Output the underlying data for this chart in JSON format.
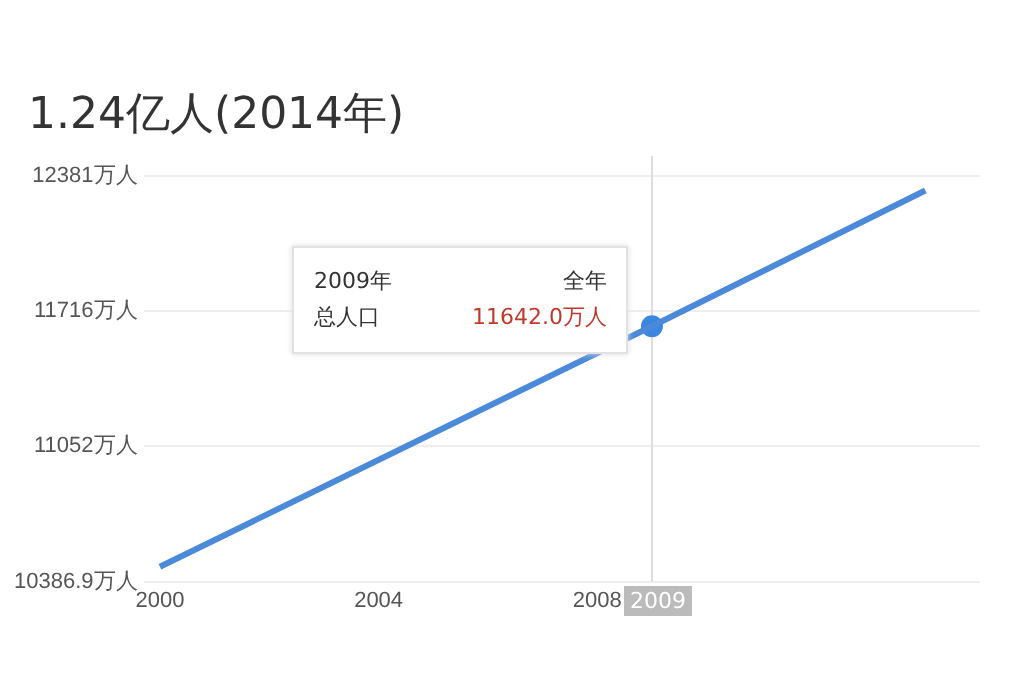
{
  "chart_data": {
    "type": "line",
    "title": "1.24亿人(2014年)",
    "x": [
      2000,
      2009,
      2014
    ],
    "series": [
      {
        "color": "#4a8ad9",
        "values": [
          10460,
          11642,
          12310
        ]
      },
      {
        "type": "scatter",
        "color": "#3b86e0",
        "x": [
          2009
        ],
        "values": [
          11642
        ],
        "marker": "circle"
      }
    ],
    "xlim": [
      1999.7,
      2015
    ],
    "xticks": [
      2000,
      2004,
      2008
    ],
    "ylim": [
      10386.9,
      12381
    ],
    "yticks": [
      {
        "value": 10386.9,
        "label": "10386.9万人"
      },
      {
        "value": 11052,
        "label": "11052万人"
      },
      {
        "value": 11716,
        "label": "11716万人"
      },
      {
        "value": 12381,
        "label": "12381万人"
      }
    ],
    "grid": "y",
    "legend": false,
    "marker": "none",
    "ref_lines": [
      {
        "axis": "x",
        "value": 2009,
        "label": "2009",
        "color": "#dddddd"
      }
    ],
    "annotations": [
      "2009年",
      "全年",
      "总人口",
      "11642.0万人"
    ]
  }
}
